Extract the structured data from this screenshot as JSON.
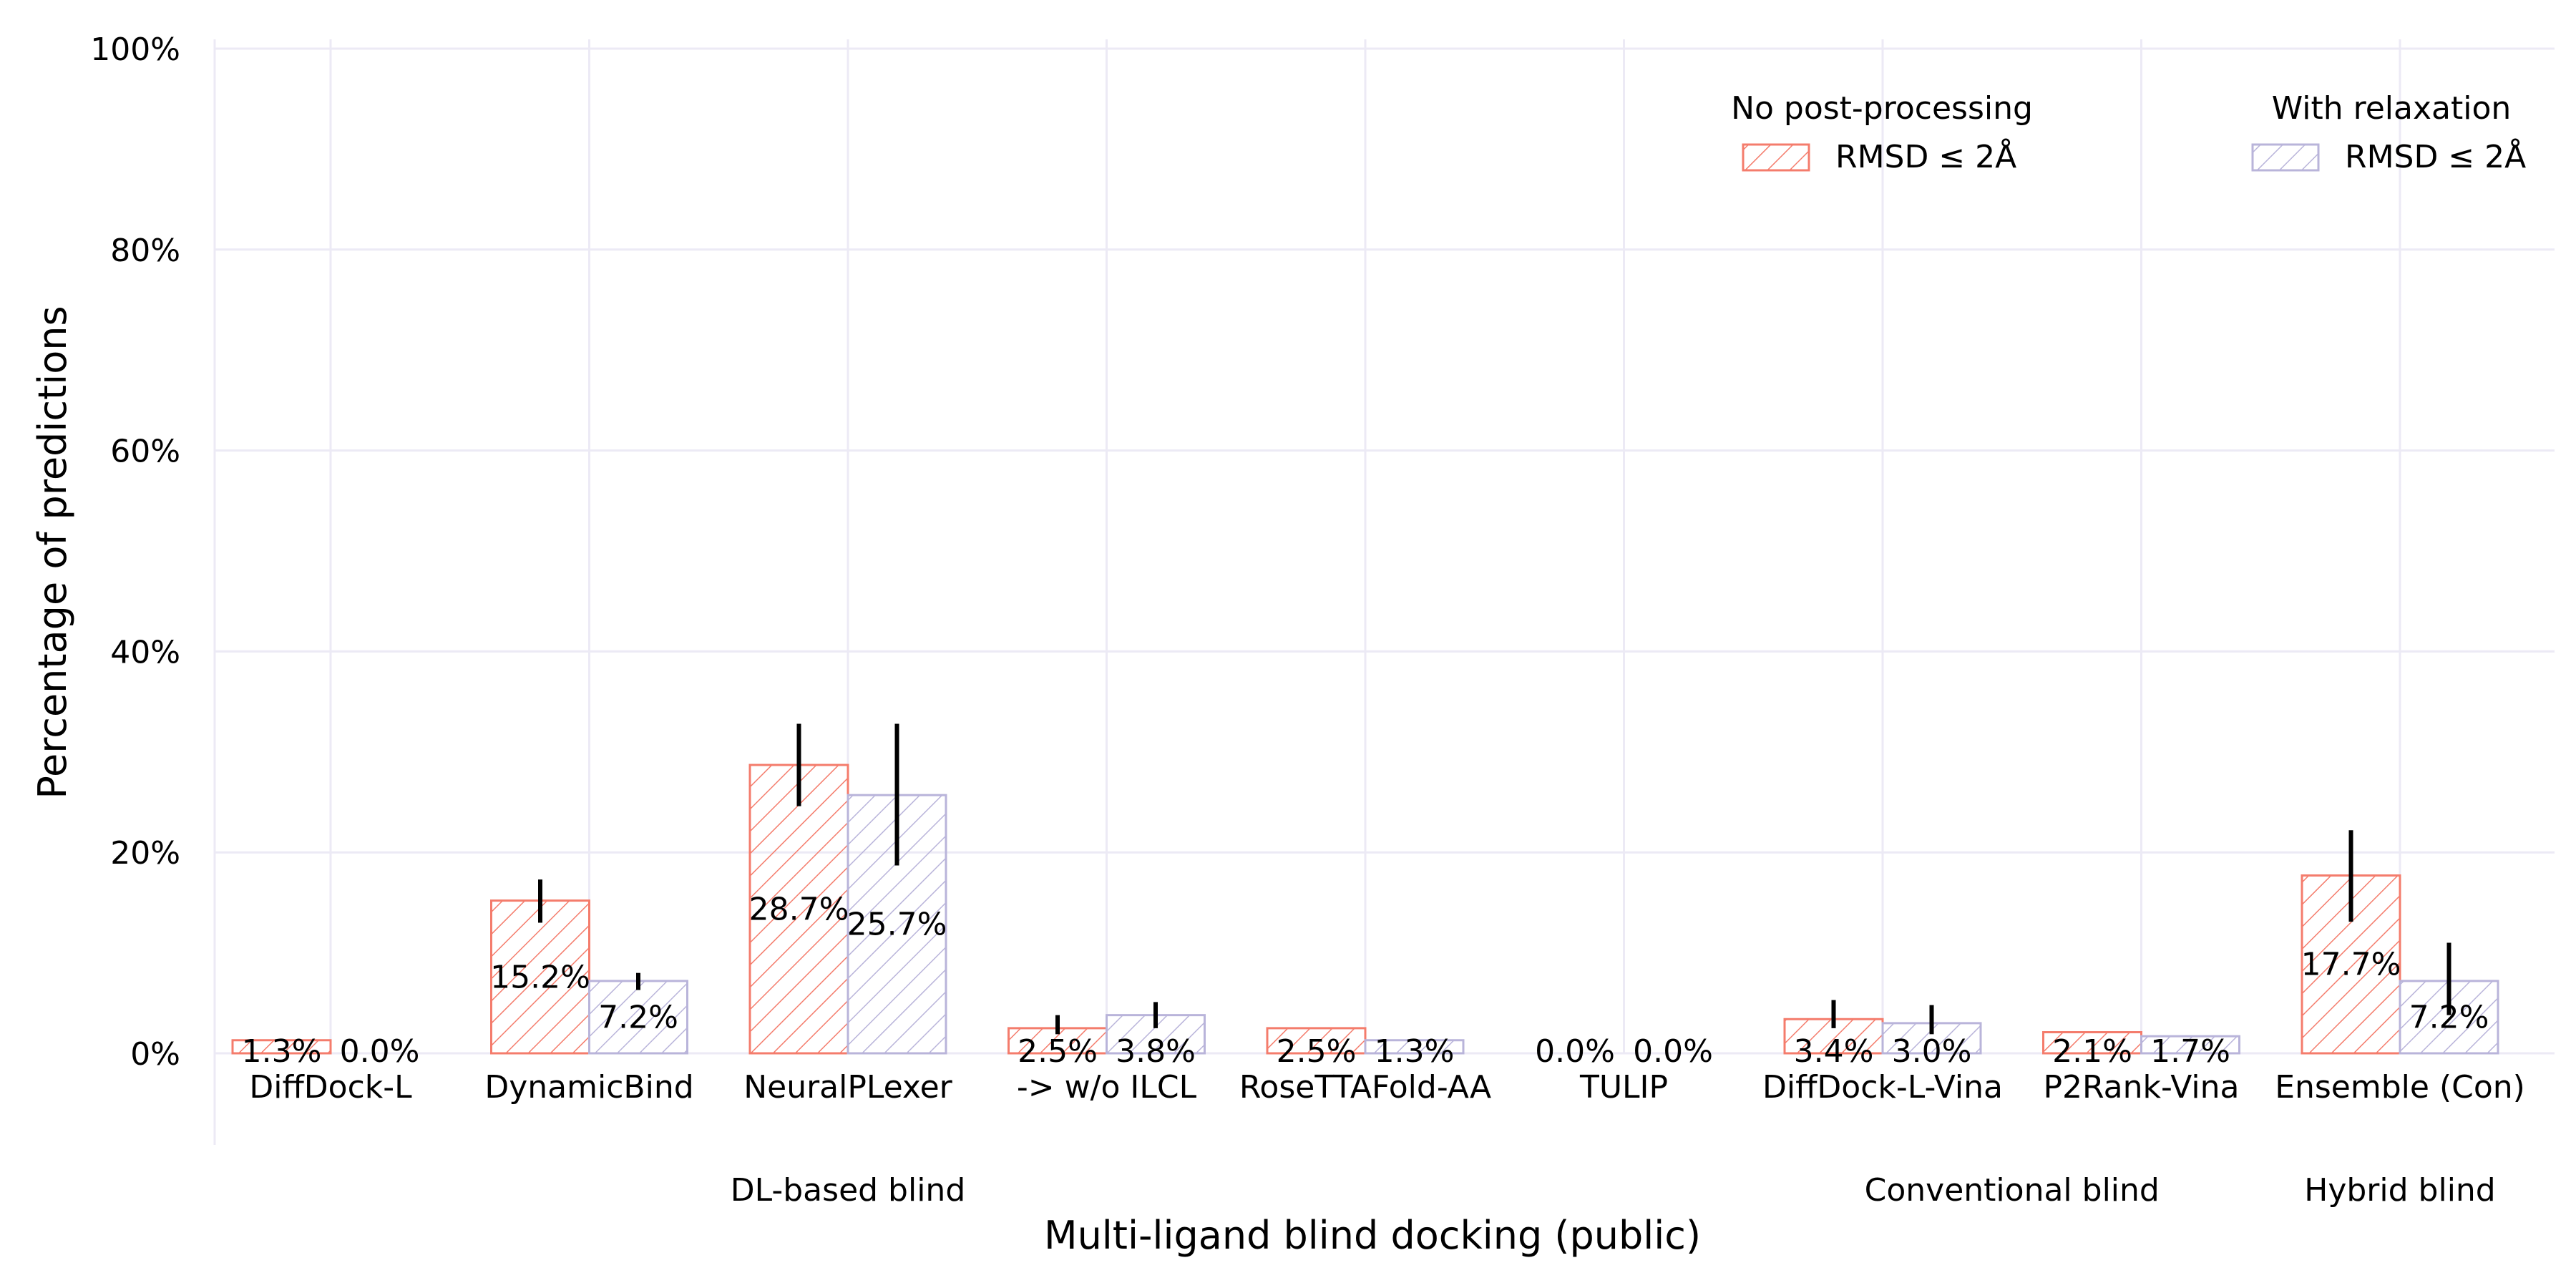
{
  "chart_data": {
    "type": "bar",
    "xlabel": "Multi-ligand blind docking (public)",
    "ylabel": "Percentage of predictions",
    "ylim": [
      0,
      100
    ],
    "yticks": [
      "0%",
      "20%",
      "40%",
      "60%",
      "80%",
      "100%"
    ],
    "grid": true,
    "categories": [
      "DiffDock-L",
      "DynamicBind",
      "NeuralPLexer",
      "->  w/o ILCL",
      "RoseTTAFold-AA",
      "TULIP",
      "DiffDock-L-Vina",
      "P2Rank-Vina",
      "Ensemble (Con)"
    ],
    "groups": [
      {
        "label": "DL-based blind",
        "categories": [
          0,
          1,
          2,
          3,
          4,
          5
        ]
      },
      {
        "label": "Conventional blind",
        "categories": [
          6,
          7
        ]
      },
      {
        "label": "Hybrid blind",
        "categories": [
          8
        ]
      }
    ],
    "series": [
      {
        "legend_title": "No post-processing",
        "name": "RMSD ≤ 2Å",
        "color": "#f47c6c",
        "values": [
          1.3,
          15.2,
          28.7,
          2.5,
          2.5,
          0.0,
          3.4,
          2.1,
          17.7
        ],
        "labels": [
          "1.3%",
          "15.2%",
          "28.7%",
          "2.5%",
          "2.5%",
          "0.0%",
          "3.4%",
          "2.1%",
          "17.7%"
        ],
        "error": [
          [
            1.3,
            1.3
          ],
          [
            13.0,
            17.3
          ],
          [
            24.6,
            32.8
          ],
          [
            1.9,
            3.8
          ],
          [
            2.5,
            2.5
          ],
          [
            0.0,
            0.0
          ],
          [
            2.5,
            5.3
          ],
          [
            2.1,
            2.1
          ],
          [
            13.1,
            22.2
          ]
        ]
      },
      {
        "legend_title": "With relaxation",
        "name": "RMSD ≤ 2Å",
        "color": "#b9b4da",
        "values": [
          0.0,
          7.2,
          25.7,
          3.8,
          1.3,
          0.0,
          3.0,
          1.7,
          7.2
        ],
        "labels": [
          "0.0%",
          "7.2%",
          "25.7%",
          "3.8%",
          "1.3%",
          "0.0%",
          "3.0%",
          "1.7%",
          "7.2%"
        ],
        "error": [
          [
            0.0,
            0.0
          ],
          [
            6.3,
            8.0
          ],
          [
            18.7,
            32.8
          ],
          [
            2.5,
            5.1
          ],
          [
            1.3,
            1.3
          ],
          [
            0.0,
            0.0
          ],
          [
            1.9,
            4.8
          ],
          [
            1.7,
            1.7
          ],
          [
            3.8,
            11.0
          ]
        ]
      }
    ],
    "legend_position": "top-right"
  }
}
